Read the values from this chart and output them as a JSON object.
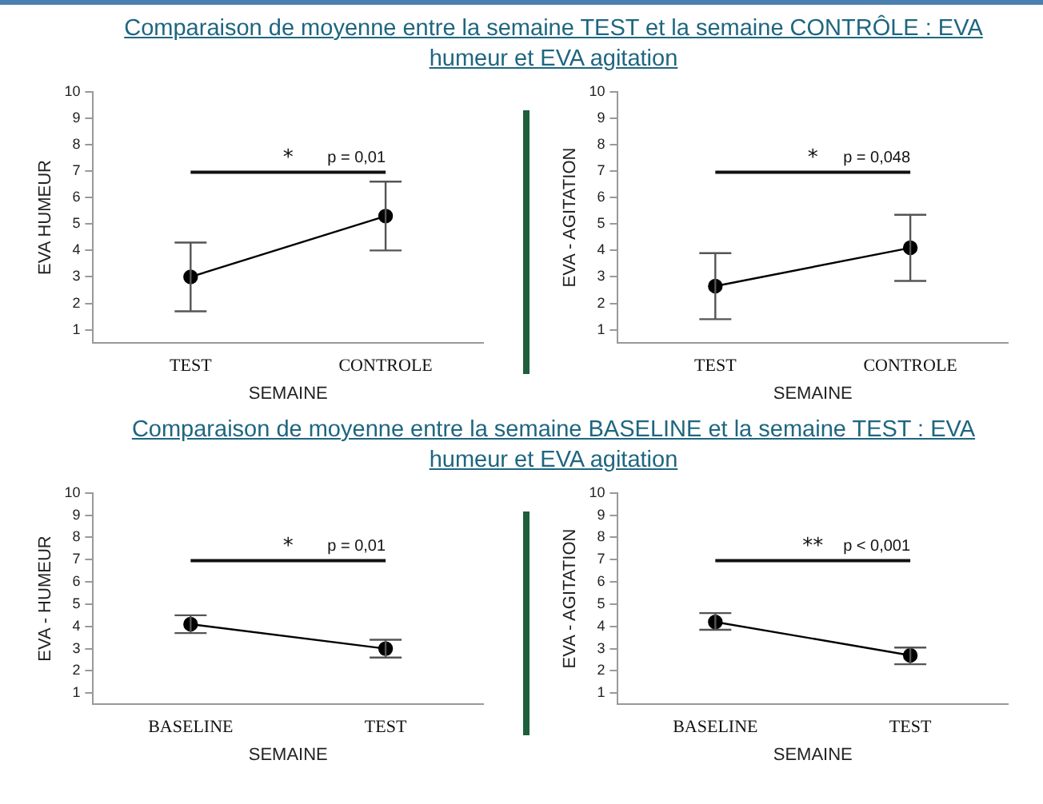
{
  "chart_data": [
    {
      "type": "line",
      "title": "Comparaison de moyenne entre la semaine TEST et la semaine CONTRÔLE : EVA humeur et EVA agitation",
      "categories": [
        "TEST",
        "CONTROLE"
      ],
      "values": [
        3.0,
        5.3
      ],
      "errors": [
        [
          1.7,
          4.3
        ],
        [
          4.0,
          6.6
        ]
      ],
      "color": "#000000",
      "marker": "circle",
      "line_style": "solid",
      "xlabel": "SEMAINE",
      "ylabel": "EVA HUMEUR",
      "ylim": [
        0.5,
        10
      ],
      "yticks": [
        1,
        2,
        3,
        4,
        5,
        6,
        7,
        8,
        9,
        10
      ],
      "grid": false,
      "legend": false,
      "annotations": [
        "*",
        "p = 0,01"
      ]
    },
    {
      "type": "line",
      "categories": [
        "TEST",
        "CONTROLE"
      ],
      "values": [
        2.65,
        4.1
      ],
      "errors": [
        [
          1.4,
          3.9
        ],
        [
          2.85,
          5.35
        ]
      ],
      "color": "#000000",
      "marker": "circle",
      "line_style": "solid",
      "xlabel": "SEMAINE",
      "ylabel": "EVA - AGITATION",
      "ylim": [
        0.5,
        10
      ],
      "yticks": [
        1,
        2,
        3,
        4,
        5,
        6,
        7,
        8,
        9,
        10
      ],
      "grid": false,
      "legend": false,
      "annotations": [
        "*",
        "p = 0,048"
      ]
    },
    {
      "type": "line",
      "title": "Comparaison de moyenne entre la semaine BASELINE et la semaine TEST : EVA humeur et EVA agitation",
      "categories": [
        "BASELINE",
        "TEST"
      ],
      "values": [
        4.1,
        3.0
      ],
      "errors": [
        [
          3.7,
          4.5
        ],
        [
          2.6,
          3.4
        ]
      ],
      "color": "#000000",
      "marker": "circle",
      "line_style": "solid",
      "xlabel": "SEMAINE",
      "ylabel": "EVA - HUMEUR",
      "ylim": [
        0.5,
        10
      ],
      "yticks": [
        1,
        2,
        3,
        4,
        5,
        6,
        7,
        8,
        9,
        10
      ],
      "grid": false,
      "legend": false,
      "annotations": [
        "*",
        "p = 0,01"
      ]
    },
    {
      "type": "line",
      "categories": [
        "BASELINE",
        "TEST"
      ],
      "values": [
        4.2,
        2.7
      ],
      "errors": [
        [
          3.85,
          4.6
        ],
        [
          2.3,
          3.05
        ]
      ],
      "color": "#000000",
      "marker": "circle",
      "line_style": "solid",
      "xlabel": "SEMAINE",
      "ylabel": "EVA - AGITATION",
      "ylim": [
        0.5,
        10
      ],
      "yticks": [
        1,
        2,
        3,
        4,
        5,
        6,
        7,
        8,
        9,
        10
      ],
      "grid": false,
      "legend": false,
      "annotations": [
        "**",
        "p < 0,001"
      ]
    }
  ]
}
